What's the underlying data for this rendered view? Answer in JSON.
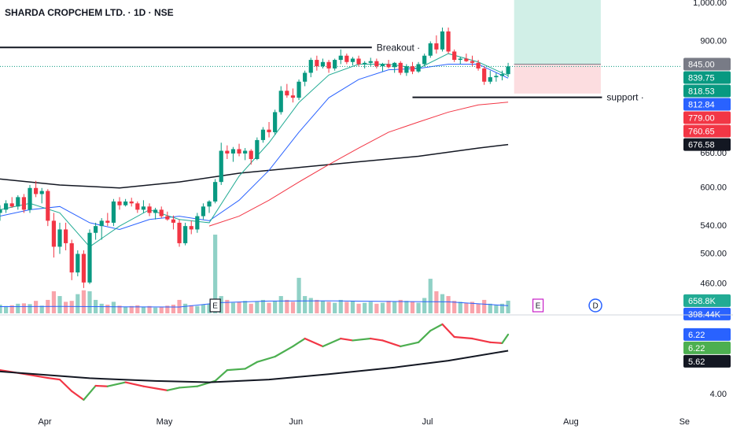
{
  "chart_data": {
    "type": "candlestick",
    "title": "SHARDA CROPCHEM LTD. · 1D · NSE",
    "log_scale": true,
    "ylim": [
      427,
      1009
    ],
    "yticks": [
      {
        "value": 1000,
        "label": "1,000.00"
      },
      {
        "value": 900,
        "label": "900.00"
      },
      {
        "value": 660,
        "label": "660.00"
      },
      {
        "value": 600,
        "label": "600.00"
      },
      {
        "value": 540,
        "label": "540.00"
      },
      {
        "value": 500,
        "label": "500.00"
      },
      {
        "value": 460,
        "label": "460.00"
      }
    ],
    "xlim": [
      0,
      113.8
    ],
    "xticks": [
      {
        "value": 7.5,
        "label": "Apr"
      },
      {
        "value": 27.5,
        "label": "May"
      },
      {
        "value": 49.5,
        "label": "Jun"
      },
      {
        "value": 71.5,
        "label": "Jul"
      },
      {
        "value": 95.5,
        "label": "Aug"
      },
      {
        "value": 114.5,
        "label": "Se"
      }
    ],
    "up_color": "#089981",
    "down_color": "#f23645",
    "ohlc": [
      [
        560,
        572,
        548,
        565
      ],
      [
        565,
        580,
        560,
        575
      ],
      [
        575,
        585,
        568,
        570
      ],
      [
        570,
        588,
        565,
        585
      ],
      [
        585,
        590,
        560,
        565
      ],
      [
        565,
        605,
        560,
        600
      ],
      [
        600,
        612,
        585,
        590
      ],
      [
        590,
        600,
        575,
        595
      ],
      [
        595,
        598,
        540,
        548
      ],
      [
        548,
        560,
        495,
        510
      ],
      [
        510,
        545,
        500,
        535
      ],
      [
        535,
        545,
        505,
        515
      ],
      [
        515,
        520,
        465,
        475
      ],
      [
        475,
        505,
        470,
        500
      ],
      [
        500,
        505,
        455,
        462
      ],
      [
        462,
        535,
        460,
        530
      ],
      [
        530,
        545,
        520,
        540
      ],
      [
        540,
        552,
        520,
        548
      ],
      [
        548,
        560,
        540,
        545
      ],
      [
        545,
        582,
        540,
        578
      ],
      [
        578,
        585,
        565,
        572
      ],
      [
        572,
        582,
        570,
        578
      ],
      [
        578,
        584,
        570,
        575
      ],
      [
        575,
        578,
        560,
        565
      ],
      [
        565,
        580,
        560,
        570
      ],
      [
        570,
        575,
        555,
        560
      ],
      [
        560,
        568,
        550,
        565
      ],
      [
        565,
        570,
        552,
        555
      ],
      [
        555,
        562,
        548,
        550
      ],
      [
        550,
        556,
        535,
        545
      ],
      [
        545,
        550,
        510,
        515
      ],
      [
        515,
        545,
        512,
        540
      ],
      [
        540,
        548,
        528,
        535
      ],
      [
        535,
        560,
        530,
        555
      ],
      [
        555,
        575,
        550,
        570
      ],
      [
        570,
        580,
        560,
        578
      ],
      [
        578,
        615,
        575,
        610
      ],
      [
        610,
        680,
        605,
        665
      ],
      [
        665,
        675,
        650,
        660
      ],
      [
        660,
        672,
        645,
        668
      ],
      [
        668,
        678,
        655,
        660
      ],
      [
        660,
        670,
        648,
        665
      ],
      [
        665,
        668,
        640,
        650
      ],
      [
        650,
        690,
        648,
        685
      ],
      [
        685,
        710,
        680,
        705
      ],
      [
        705,
        720,
        690,
        700
      ],
      [
        700,
        745,
        695,
        740
      ],
      [
        740,
        795,
        735,
        785
      ],
      [
        785,
        800,
        770,
        775
      ],
      [
        775,
        790,
        760,
        770
      ],
      [
        770,
        810,
        765,
        805
      ],
      [
        805,
        830,
        795,
        825
      ],
      [
        825,
        860,
        815,
        855
      ],
      [
        855,
        865,
        830,
        840
      ],
      [
        840,
        858,
        835,
        850
      ],
      [
        850,
        855,
        825,
        835
      ],
      [
        835,
        858,
        830,
        855
      ],
      [
        855,
        880,
        845,
        865
      ],
      [
        865,
        870,
        845,
        850
      ],
      [
        850,
        862,
        842,
        858
      ],
      [
        858,
        865,
        840,
        845
      ],
      [
        845,
        852,
        835,
        848
      ],
      [
        848,
        860,
        840,
        852
      ],
      [
        852,
        858,
        835,
        840
      ],
      [
        840,
        848,
        828,
        845
      ],
      [
        845,
        855,
        835,
        838
      ],
      [
        838,
        850,
        825,
        848
      ],
      [
        848,
        852,
        820,
        825
      ],
      [
        825,
        845,
        818,
        840
      ],
      [
        840,
        850,
        822,
        828
      ],
      [
        828,
        850,
        825,
        845
      ],
      [
        845,
        870,
        840,
        865
      ],
      [
        865,
        900,
        860,
        895
      ],
      [
        895,
        915,
        870,
        880
      ],
      [
        880,
        935,
        875,
        925
      ],
      [
        925,
        935,
        870,
        875
      ],
      [
        875,
        880,
        850,
        855
      ],
      [
        855,
        862,
        845,
        858
      ],
      [
        858,
        870,
        850,
        852
      ],
      [
        852,
        865,
        840,
        848
      ],
      [
        848,
        855,
        830,
        835
      ],
      [
        835,
        840,
        798,
        805
      ],
      [
        805,
        830,
        800,
        815
      ],
      [
        815,
        825,
        805,
        818
      ],
      [
        818,
        830,
        808,
        822
      ],
      [
        822,
        848,
        815,
        839.75
      ]
    ],
    "volume": {
      "ylim": [
        0,
        16200
      ],
      "values": [
        450,
        380,
        420,
        500,
        520,
        480,
        650,
        400,
        700,
        1150,
        900,
        600,
        650,
        1000,
        1200,
        1150,
        700,
        500,
        450,
        600,
        400,
        350,
        380,
        420,
        350,
        380,
        300,
        350,
        400,
        450,
        700,
        500,
        420,
        380,
        450,
        500,
        4100,
        900,
        700,
        550,
        600,
        650,
        500,
        600,
        700,
        550,
        650,
        900,
        700,
        600,
        1850,
        900,
        800,
        700,
        650,
        600,
        550,
        700,
        600,
        650,
        500,
        550,
        600,
        500,
        550,
        650,
        600,
        700,
        650,
        600,
        550,
        800,
        1800,
        1150,
        1000,
        900,
        650,
        600,
        550,
        600,
        500,
        700,
        500,
        450,
        500,
        658.8
      ],
      "ma": {
        "color": "#2962ff",
        "x": [
          0,
          10,
          20,
          30,
          37,
          45,
          55,
          65,
          75,
          85
        ],
        "values": [
          350,
          360,
          340,
          330,
          560,
          640,
          650,
          620,
          600,
          398.44
        ]
      }
    },
    "moving_averages": [
      {
        "color": "#131722",
        "x": [
          0,
          10,
          20,
          30,
          40,
          50,
          60,
          70,
          80,
          85
        ],
        "values": [
          615,
          605,
          600,
          610,
          625,
          635,
          645,
          655,
          670,
          676.58
        ]
      },
      {
        "color": "#f23645",
        "x": [
          35,
          40,
          45,
          50,
          55,
          60,
          65,
          70,
          75,
          80,
          85
        ],
        "values": [
          540,
          555,
          580,
          610,
          640,
          670,
          700,
          720,
          740,
          755,
          760.65
        ]
      },
      {
        "color": "#2962ff",
        "x": [
          0,
          5,
          10,
          15,
          20,
          25,
          30,
          35,
          40,
          45,
          50,
          55,
          60,
          65,
          70,
          75,
          80,
          85
        ],
        "values": [
          555,
          565,
          570,
          545,
          535,
          550,
          555,
          548,
          580,
          630,
          700,
          770,
          810,
          832,
          835,
          845,
          845,
          812.84
        ]
      },
      {
        "color": "#22ab94",
        "x": [
          0,
          5,
          10,
          15,
          20,
          25,
          30,
          35,
          40,
          45,
          50,
          55,
          60,
          65,
          70,
          75,
          80,
          85
        ],
        "values": [
          565,
          575,
          560,
          510,
          540,
          565,
          550,
          545,
          620,
          680,
          760,
          820,
          845,
          845,
          835,
          870,
          850,
          818.53
        ]
      }
    ],
    "levels": [
      {
        "value": 885,
        "x": [
          0,
          62.2
        ],
        "label": "Breakout ·",
        "color": "#131722",
        "label_color": "#2962ff"
      },
      {
        "value": 771,
        "x": [
          69,
          100.7
        ],
        "label": "support ·",
        "color": "#131722",
        "label_color": "#2962ff"
      }
    ],
    "position": {
      "x": [
        86,
        100.5
      ],
      "entry": 845,
      "target": 1010,
      "stop": 779,
      "target_color": "#d1efe7",
      "stop_color": "#fcdde0"
    },
    "price_tags": [
      {
        "value": 845,
        "label": "845.00",
        "color": "#787b86"
      },
      {
        "value": 839.75,
        "label": "839.75",
        "color": "#089981"
      },
      {
        "value": 818.53,
        "label": "818.53",
        "color": "#089981"
      },
      {
        "value": 812.84,
        "label": "812.84",
        "color": "#2962ff"
      },
      {
        "value": 779,
        "label": "779.00",
        "color": "#f23645"
      },
      {
        "value": 760.65,
        "label": "760.65",
        "color": "#f23645"
      },
      {
        "value": 676.58,
        "label": "676.58",
        "color": "#131722"
      }
    ],
    "volume_tags": [
      {
        "value": 658.8,
        "label": "658.8K",
        "color": "#22ab94"
      },
      {
        "value": 398.44,
        "label": "398.44K",
        "color": "#2962ff"
      }
    ],
    "events": [
      {
        "x": 36,
        "label": "E",
        "color": "#131722",
        "shape": "box"
      },
      {
        "x": 90,
        "label": "E",
        "color": "#c71fc7",
        "shape": "box"
      },
      {
        "x": 99.6,
        "label": "D",
        "color": "#2962ff",
        "shape": "circle"
      }
    ],
    "indicator": {
      "ylim": [
        3.3,
        6.8
      ],
      "yticks": [
        {
          "value": 4,
          "label": "4.00"
        }
      ],
      "up_color": "#4caf50",
      "down_color": "#f23645",
      "x": [
        0,
        4,
        8,
        10,
        12,
        14,
        16,
        18,
        21,
        24,
        28,
        30,
        33,
        36,
        38,
        41,
        43,
        46,
        49,
        51,
        54,
        57,
        59,
        62,
        64,
        67,
        70,
        72,
        74,
        76,
        79,
        82,
        84,
        85
      ],
      "values": [
        4.9,
        4.76,
        4.61,
        4.55,
        4.12,
        3.8,
        4.32,
        4.3,
        4.45,
        4.3,
        4.15,
        4.25,
        4.3,
        4.5,
        4.9,
        4.95,
        5.2,
        5.4,
        5.78,
        6.07,
        5.78,
        6.07,
        6.0,
        6.07,
        6.0,
        5.78,
        5.93,
        6.36,
        6.6,
        6.13,
        6.07,
        5.93,
        5.9,
        6.22
      ],
      "ma": {
        "color": "#131722",
        "x": [
          0,
          15,
          26,
          35,
          45,
          55,
          66,
          75,
          85
        ],
        "values": [
          4.85,
          4.6,
          4.5,
          4.45,
          4.55,
          4.75,
          5.0,
          5.25,
          5.62
        ]
      },
      "tags": [
        {
          "value": 6.22,
          "label": "6.22",
          "color": "#2962ff"
        },
        {
          "value": 6.22,
          "label": "6.22",
          "color": "#4caf50"
        },
        {
          "value": 5.62,
          "label": "5.62",
          "color": "#131722"
        }
      ]
    }
  }
}
